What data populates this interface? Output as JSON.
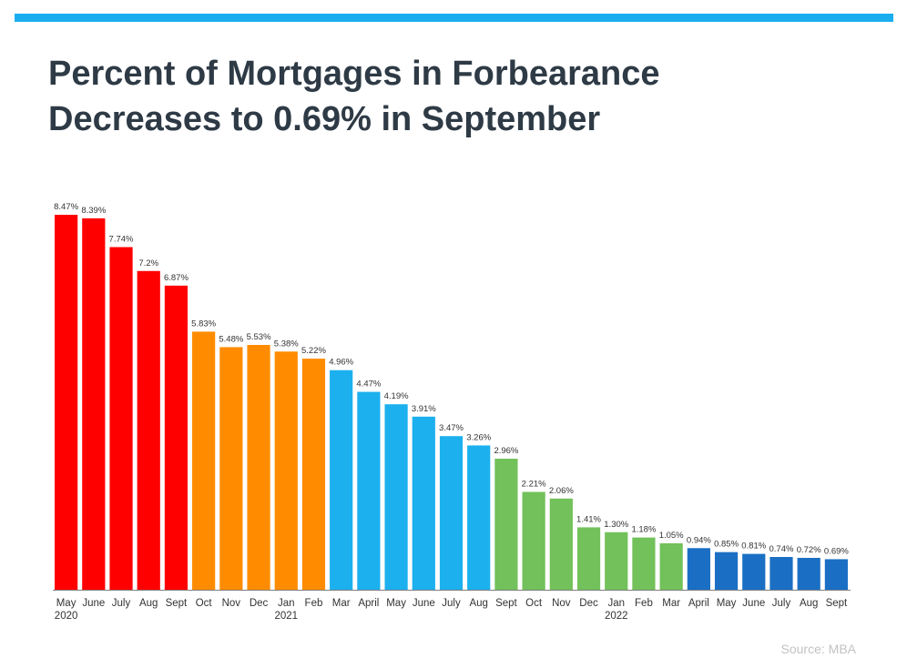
{
  "title_line1": "Percent of Mortgages in Forbearance",
  "title_line2": "Decreases to 0.69% in September",
  "source": "Source: MBA",
  "colors": {
    "accent_bar": "#1aaeef",
    "red": "#ff0000",
    "orange": "#ff8c00",
    "light_blue": "#1cb0ee",
    "green": "#72c15a",
    "dark_blue": "#1a6fc4",
    "axis": "#7f7f7f"
  },
  "chart_data": {
    "type": "bar",
    "title": "Percent of Mortgages in Forbearance Decreases to 0.69% in September",
    "xlabel": "",
    "ylabel": "",
    "ylim": [
      0,
      8.47
    ],
    "grid": false,
    "legend": "none",
    "categories": [
      "May",
      "June",
      "July",
      "Aug",
      "Sept",
      "Oct",
      "Nov",
      "Dec",
      "Jan",
      "Feb",
      "Mar",
      "April",
      "May",
      "June",
      "July",
      "Aug",
      "Sept",
      "Oct",
      "Nov",
      "Dec",
      "Jan",
      "Feb",
      "Mar",
      "April",
      "May",
      "June",
      "July",
      "Aug",
      "Sept"
    ],
    "values": [
      8.47,
      8.39,
      7.74,
      7.2,
      6.87,
      5.83,
      5.48,
      5.53,
      5.38,
      5.22,
      4.96,
      4.47,
      4.19,
      3.91,
      3.47,
      3.26,
      2.96,
      2.21,
      2.06,
      1.41,
      1.3,
      1.18,
      1.05,
      0.94,
      0.85,
      0.81,
      0.74,
      0.72,
      0.69
    ],
    "value_labels": [
      "8.47%",
      "8.39%",
      "7.74%",
      "7.2%",
      "6.87%",
      "5.83%",
      "5.48%",
      "5.53%",
      "5.38%",
      "5.22%",
      "4.96%",
      "4.47%",
      "4.19%",
      "3.91%",
      "3.47%",
      "3.26%",
      "2.96%",
      "2.21%",
      "2.06%",
      "1.41%",
      "1.30%",
      "1.18%",
      "1.05%",
      "0.94%",
      "0.85%",
      "0.81%",
      "0.74%",
      "0.72%",
      "0.69%"
    ],
    "bar_color_keys": [
      "red",
      "red",
      "red",
      "red",
      "red",
      "orange",
      "orange",
      "orange",
      "orange",
      "orange",
      "light_blue",
      "light_blue",
      "light_blue",
      "light_blue",
      "light_blue",
      "light_blue",
      "green",
      "green",
      "green",
      "green",
      "green",
      "green",
      "green",
      "dark_blue",
      "dark_blue",
      "dark_blue",
      "dark_blue",
      "dark_blue",
      "dark_blue"
    ],
    "year_labels": [
      {
        "index": 0,
        "text": "2020"
      },
      {
        "index": 8,
        "text": "2021"
      },
      {
        "index": 20,
        "text": "2022"
      }
    ]
  }
}
